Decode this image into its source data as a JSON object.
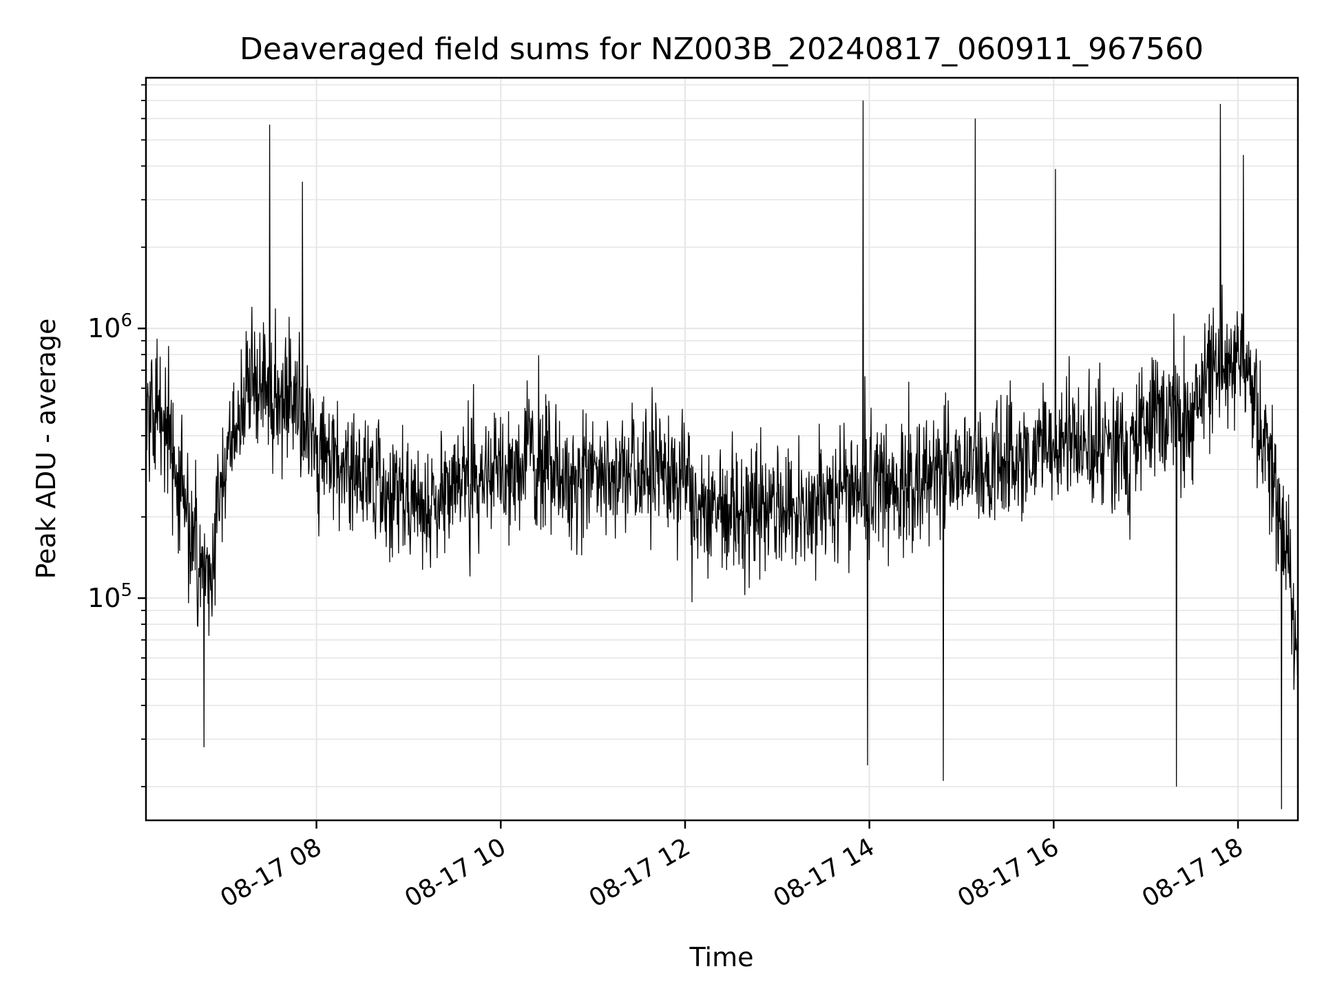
{
  "chart_data": {
    "type": "line",
    "title": "Deaveraged field sums for NZ003B_20240817_060911_967560",
    "xlabel": "Time",
    "ylabel": "Peak ADU - average",
    "y_scale": "log",
    "grid": true,
    "line_color": "#000000",
    "grid_color": "#e6e6e6",
    "x_tick_labels": [
      "08-17 08",
      "08-17 10",
      "08-17 12",
      "08-17 14",
      "08-17 16",
      "08-17 18"
    ],
    "x_tick_hours": [
      8,
      10,
      12,
      14,
      16,
      18
    ],
    "y_tick_labels": [
      {
        "base": "10",
        "exp": "5",
        "value": 100000
      },
      {
        "base": "10",
        "exp": "6",
        "value": 1000000
      }
    ],
    "xlim_hours": [
      6.15,
      18.65
    ],
    "ylim": [
      15000,
      8500000
    ],
    "series": [
      {
        "x_hours": [
          6.15,
          6.4,
          6.7,
          6.85,
          7.0,
          7.3,
          7.5,
          7.8,
          8.2,
          8.7,
          9.2,
          9.8,
          10.3,
          10.8,
          11.3,
          11.8,
          12.3,
          12.8,
          13.3,
          13.8,
          14.3,
          14.8,
          15.3,
          15.8,
          16.3,
          16.8,
          17.1,
          17.4,
          17.7,
          18.0,
          18.2,
          18.4,
          18.55,
          18.65
        ],
        "y_values": [
          600000,
          400000,
          150000,
          120000,
          300000,
          600000,
          600000,
          500000,
          300000,
          250000,
          230000,
          280000,
          320000,
          270000,
          290000,
          300000,
          200000,
          210000,
          220000,
          250000,
          270000,
          300000,
          320000,
          350000,
          380000,
          350000,
          500000,
          400000,
          700000,
          800000,
          500000,
          250000,
          120000,
          60000
        ]
      }
    ],
    "spikes": [
      {
        "x_hour": 7.49,
        "y": 5700000
      },
      {
        "x_hour": 7.85,
        "y": 3500000
      },
      {
        "x_hour": 13.93,
        "y": 7000000
      },
      {
        "x_hour": 15.15,
        "y": 6000000
      },
      {
        "x_hour": 16.02,
        "y": 3900000
      },
      {
        "x_hour": 17.81,
        "y": 6800000
      },
      {
        "x_hour": 18.06,
        "y": 4400000
      },
      {
        "x_hour": 6.78,
        "y": 28000
      },
      {
        "x_hour": 13.98,
        "y": 24000
      },
      {
        "x_hour": 14.8,
        "y": 21000
      },
      {
        "x_hour": 17.33,
        "y": 20000
      },
      {
        "x_hour": 18.47,
        "y": 16500
      }
    ]
  }
}
